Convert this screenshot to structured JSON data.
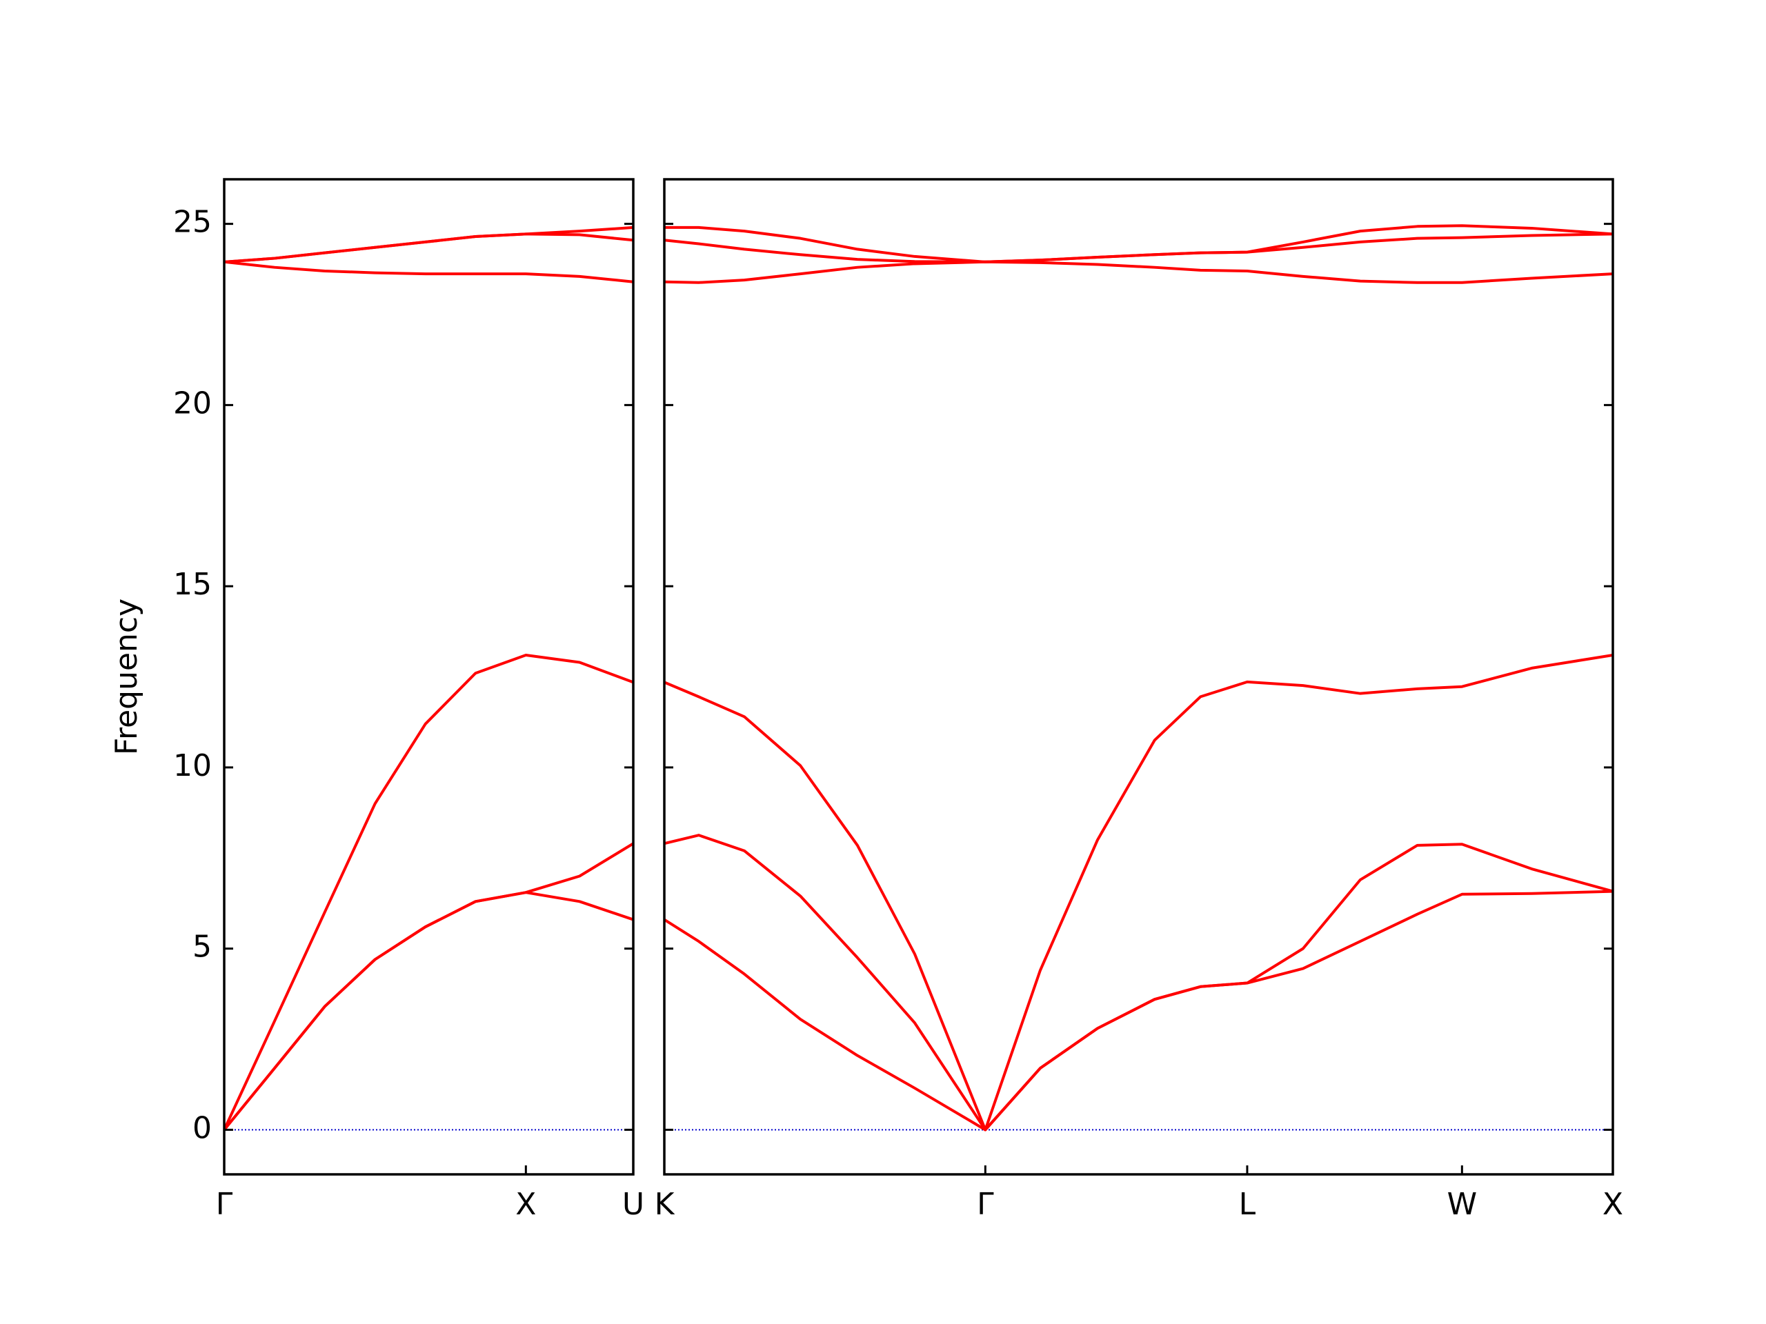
{
  "chart_data": [
    {
      "type": "line",
      "ylabel": "Frequency",
      "x": [
        0,
        0.167,
        0.333,
        0.5,
        0.667,
        0.833,
        1,
        1.178,
        1.356
      ],
      "xlim": [
        0,
        1.356
      ],
      "xticks": [
        {
          "value": 0,
          "label": "Γ"
        },
        {
          "value": 1,
          "label": "X"
        },
        {
          "value": 1.356,
          "label": "U"
        }
      ],
      "ylim": [
        -1.23,
        26.23
      ],
      "yticks": [
        0,
        5,
        10,
        15,
        20,
        25
      ],
      "ytick_labels": true,
      "hline": 0,
      "hline_color": "#0000cc",
      "series": [
        {
          "color": "#ff0000",
          "values": [
            0,
            1.7,
            3.4,
            4.7,
            5.6,
            6.3,
            6.55,
            6.3,
            5.8
          ]
        },
        {
          "color": "#ff0000",
          "values": [
            0,
            1.7,
            3.4,
            4.7,
            5.6,
            6.3,
            6.55,
            7.0,
            7.9
          ]
        },
        {
          "color": "#ff0000",
          "values": [
            0,
            3.0,
            6.0,
            9.0,
            11.2,
            12.6,
            13.1,
            12.9,
            12.35
          ]
        },
        {
          "color": "#ff0000",
          "values": [
            23.95,
            23.8,
            23.7,
            23.65,
            23.62,
            23.62,
            23.62,
            23.55,
            23.4
          ]
        },
        {
          "color": "#ff0000",
          "values": [
            23.95,
            24.05,
            24.2,
            24.35,
            24.5,
            24.65,
            24.72,
            24.7,
            24.55
          ]
        },
        {
          "color": "#ff0000",
          "values": [
            23.95,
            24.05,
            24.2,
            24.35,
            24.5,
            24.65,
            24.72,
            24.8,
            24.9
          ]
        }
      ]
    },
    {
      "type": "line",
      "x": [
        1.356,
        1.47,
        1.621,
        1.807,
        1.996,
        2.186,
        2.42,
        2.602,
        2.792,
        2.981,
        3.133,
        3.288,
        3.473,
        3.663,
        3.852,
        4.0,
        4.231,
        4.5
      ],
      "xlim": [
        1.356,
        4.5
      ],
      "xticks": [
        {
          "value": 1.356,
          "label": "K"
        },
        {
          "value": 2.42,
          "label": "Γ"
        },
        {
          "value": 3.288,
          "label": "L"
        },
        {
          "value": 4.0,
          "label": "W"
        },
        {
          "value": 4.5,
          "label": "X"
        }
      ],
      "ylim": [
        -1.23,
        26.23
      ],
      "yticks": [
        0,
        5,
        10,
        15,
        20,
        25
      ],
      "ytick_labels": false,
      "hline": 0,
      "hline_color": "#0000cc",
      "series": [
        {
          "color": "#ff0000",
          "values": [
            5.8,
            5.2,
            4.3,
            3.05,
            2.05,
            1.15,
            0,
            1.7,
            2.8,
            3.6,
            3.95,
            4.05,
            4.45,
            5.2,
            5.95,
            6.5,
            6.52,
            6.58
          ]
        },
        {
          "color": "#ff0000",
          "values": [
            7.9,
            8.13,
            7.7,
            6.45,
            4.75,
            2.95,
            0,
            1.7,
            2.8,
            3.6,
            3.95,
            4.05,
            5.0,
            6.9,
            7.85,
            7.88,
            7.2,
            6.58
          ]
        },
        {
          "color": "#ff0000",
          "values": [
            12.35,
            11.95,
            11.4,
            10.05,
            7.85,
            4.85,
            0,
            4.4,
            8.0,
            10.75,
            11.95,
            12.36,
            12.26,
            12.04,
            12.17,
            12.23,
            12.74,
            13.1
          ]
        },
        {
          "color": "#ff0000",
          "values": [
            23.4,
            23.38,
            23.45,
            23.62,
            23.8,
            23.9,
            23.95,
            23.93,
            23.88,
            23.8,
            23.72,
            23.7,
            23.55,
            23.42,
            23.38,
            23.38,
            23.5,
            23.62
          ]
        },
        {
          "color": "#ff0000",
          "values": [
            24.55,
            24.45,
            24.3,
            24.15,
            24.02,
            23.96,
            23.95,
            24.0,
            24.08,
            24.15,
            24.2,
            24.22,
            24.35,
            24.5,
            24.6,
            24.62,
            24.68,
            24.72
          ]
        },
        {
          "color": "#ff0000",
          "values": [
            24.9,
            24.9,
            24.8,
            24.6,
            24.3,
            24.1,
            23.95,
            24.0,
            24.08,
            24.15,
            24.2,
            24.22,
            24.5,
            24.8,
            24.93,
            24.95,
            24.88,
            24.72
          ]
        }
      ]
    }
  ]
}
